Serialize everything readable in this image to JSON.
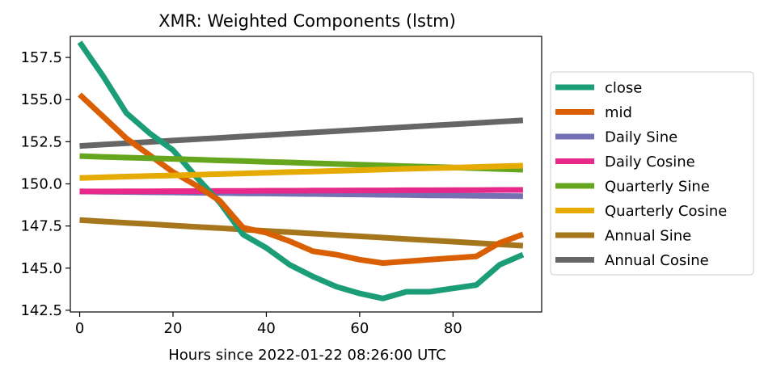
{
  "chart_data": {
    "type": "line",
    "title": "XMR: Weighted Components (lstm)",
    "xlabel": "Hours since 2022-01-22 08:26:00 UTC",
    "ylabel": "",
    "xlim": [
      -2,
      99
    ],
    "ylim": [
      142.4,
      158.75
    ],
    "xticks": [
      "0",
      "20",
      "40",
      "60",
      "80"
    ],
    "xtick_values": [
      0,
      20,
      40,
      60,
      80
    ],
    "yticks": [
      "142.5",
      "145.0",
      "147.5",
      "150.0",
      "152.5",
      "155.0",
      "157.5"
    ],
    "ytick_values": [
      142.5,
      145.0,
      147.5,
      150.0,
      152.5,
      155.0,
      157.5
    ],
    "grid": false,
    "legend_position": "right",
    "x": [
      0,
      5,
      10,
      15,
      20,
      25,
      30,
      35,
      40,
      45,
      50,
      55,
      60,
      65,
      70,
      75,
      80,
      85,
      90,
      95
    ],
    "series": [
      {
        "name": "close",
        "color": "#1b9e77",
        "values": [
          158.4,
          156.4,
          154.2,
          153.0,
          152.0,
          150.4,
          148.9,
          147.0,
          146.2,
          145.2,
          144.5,
          143.9,
          143.5,
          143.2,
          143.6,
          143.6,
          143.8,
          144.0,
          145.2,
          145.8
        ]
      },
      {
        "name": "mid",
        "color": "#d95f02",
        "values": [
          155.3,
          154.0,
          152.7,
          151.7,
          150.7,
          149.9,
          149.0,
          147.4,
          147.1,
          146.6,
          146.0,
          145.8,
          145.5,
          145.3,
          145.4,
          145.5,
          145.6,
          145.7,
          146.5,
          147.0
        ]
      },
      {
        "name": "Daily Sine",
        "color": "#7570b3",
        "values": [
          149.55,
          149.53,
          149.52,
          149.5,
          149.49,
          149.47,
          149.46,
          149.44,
          149.43,
          149.41,
          149.4,
          149.38,
          149.37,
          149.35,
          149.34,
          149.32,
          149.31,
          149.29,
          149.28,
          149.27
        ]
      },
      {
        "name": "Daily Cosine",
        "color": "#e7298a",
        "values": [
          149.55,
          149.55,
          149.56,
          149.56,
          149.57,
          149.57,
          149.58,
          149.58,
          149.59,
          149.59,
          149.6,
          149.6,
          149.61,
          149.61,
          149.62,
          149.62,
          149.63,
          149.63,
          149.64,
          149.64
        ]
      },
      {
        "name": "Quarterly Sine",
        "color": "#66a61e",
        "values": [
          151.65,
          151.6,
          151.56,
          151.52,
          151.48,
          151.44,
          151.39,
          151.35,
          151.31,
          151.27,
          151.22,
          151.18,
          151.14,
          151.1,
          151.05,
          151.01,
          150.97,
          150.93,
          150.88,
          150.84
        ]
      },
      {
        "name": "Quarterly Cosine",
        "color": "#e6ab02",
        "values": [
          150.35,
          150.39,
          150.43,
          150.47,
          150.5,
          150.54,
          150.58,
          150.62,
          150.66,
          150.7,
          150.73,
          150.77,
          150.81,
          150.85,
          150.89,
          150.93,
          150.96,
          151.0,
          151.04,
          151.08
        ]
      },
      {
        "name": "Annual Sine",
        "color": "#a6761d",
        "values": [
          147.85,
          147.77,
          147.69,
          147.61,
          147.53,
          147.45,
          147.37,
          147.29,
          147.21,
          147.13,
          147.05,
          146.97,
          146.89,
          146.81,
          146.73,
          146.65,
          146.57,
          146.49,
          146.41,
          146.33
        ]
      },
      {
        "name": "Annual Cosine",
        "color": "#666666",
        "values": [
          152.25,
          152.33,
          152.41,
          152.49,
          152.57,
          152.65,
          152.73,
          152.81,
          152.89,
          152.97,
          153.05,
          153.13,
          153.21,
          153.29,
          153.37,
          153.45,
          153.53,
          153.61,
          153.69,
          153.77
        ]
      }
    ]
  }
}
